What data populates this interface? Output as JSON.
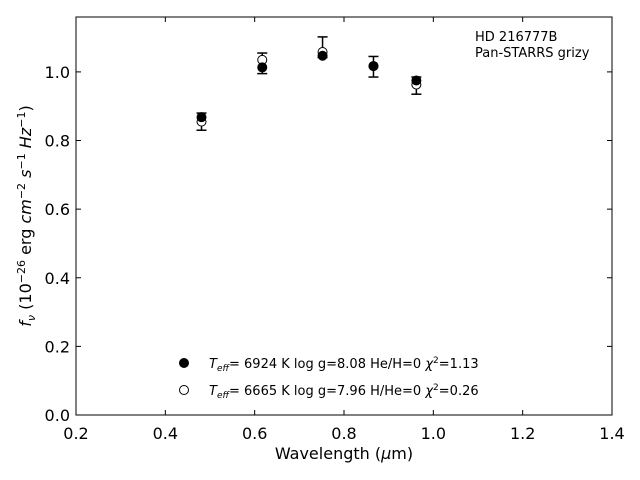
{
  "chart_data": {
    "type": "scatter",
    "title": "",
    "xlabel": "Wavelength (μm)",
    "ylabel": "f_ν (10^-26 erg cm^-2 s^-1 Hz^-1)",
    "xlim": [
      0.2,
      1.4
    ],
    "ylim": [
      0.0,
      1.16
    ],
    "xticks": [
      0.2,
      0.4,
      0.6,
      0.8,
      1.0,
      1.2,
      1.4
    ],
    "xtick_labels": [
      "0.2",
      "0.4",
      "0.6",
      "0.8",
      "1.0",
      "1.2",
      "1.4"
    ],
    "yticks": [
      0.0,
      0.2,
      0.4,
      0.6,
      0.8,
      1.0
    ],
    "ytick_labels": [
      "0.0",
      "0.2",
      "0.4",
      "0.6",
      "0.8",
      "1.0"
    ],
    "grid": false,
    "legend_position": "bottom-center",
    "annotation": [
      "HD 216777B",
      "Pan-STARRS grizy"
    ],
    "observed": {
      "x": [
        0.481,
        0.617,
        0.752,
        0.866,
        0.962
      ],
      "y": [
        0.855,
        1.025,
        1.072,
        1.015,
        0.96
      ],
      "yerr": [
        0.025,
        0.03,
        0.03,
        0.03,
        0.025
      ]
    },
    "series": [
      {
        "name": "Teff= 6924 K log g=8.08 He/H=0 χ2=1.13",
        "marker": "filled-circle",
        "x": [
          0.481,
          0.617,
          0.752,
          0.866,
          0.962
        ],
        "y": [
          0.868,
          1.013,
          1.047,
          1.017,
          0.975
        ]
      },
      {
        "name": "Teff= 6665 K log g=7.96 H/He=0 χ2=0.26",
        "marker": "open-circle",
        "x": [
          0.481,
          0.617,
          0.752,
          0.866,
          0.962
        ],
        "y": [
          0.855,
          1.035,
          1.058,
          1.017,
          0.963
        ]
      }
    ],
    "legend": [
      {
        "marker": "filled-circle",
        "teff": "6924 K",
        "logg": "log g=8.08",
        "comp": "He/H=0",
        "chi2": "=1.13"
      },
      {
        "marker": "open-circle",
        "teff": "6665 K",
        "logg": "log g=7.96",
        "comp": "H/He=0",
        "chi2": "=0.26"
      }
    ]
  }
}
